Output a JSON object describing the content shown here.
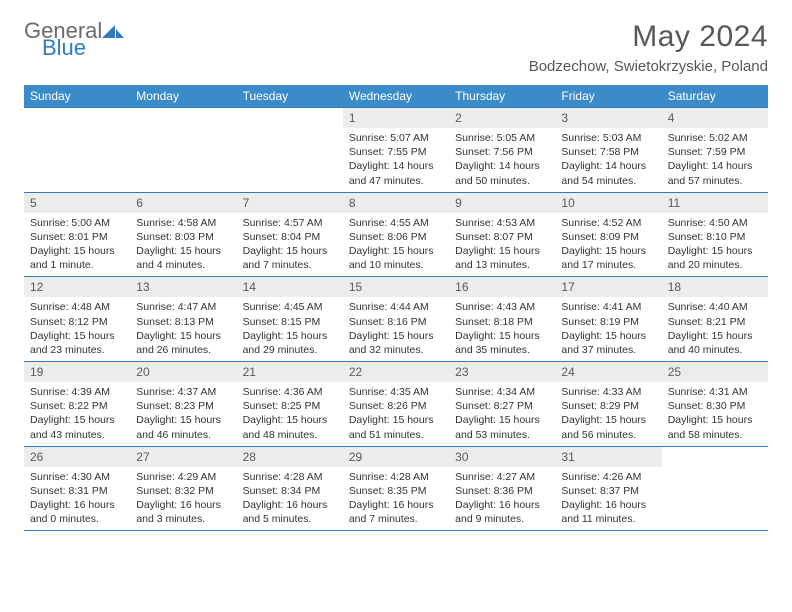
{
  "logo": {
    "text1": "General",
    "text2": "Blue"
  },
  "title": "May 2024",
  "location": "Bodzechow, Swietokrzyskie, Poland",
  "dow": [
    "Sunday",
    "Monday",
    "Tuesday",
    "Wednesday",
    "Thursday",
    "Friday",
    "Saturday"
  ],
  "colors": {
    "header_bg": "#3b8bc8",
    "header_text": "#ffffff",
    "rule": "#2f7bbf",
    "daynum_bg": "#ececec",
    "daynum_text": "#5a5a5a",
    "body_text": "#333333",
    "title_text": "#575757",
    "logo_gray": "#6a6a6a",
    "logo_blue": "#2f7bbf",
    "page_bg": "#ffffff"
  },
  "typography": {
    "title_fontsize": 30,
    "location_fontsize": 15,
    "dow_fontsize": 12,
    "daynum_fontsize": 12,
    "body_fontsize": 10.5,
    "logo_fontsize": 22
  },
  "layout": {
    "columns": 7,
    "rows": 5,
    "leading_blanks": 3,
    "trailing_blanks": 1
  },
  "days": [
    {
      "n": "1",
      "sunrise": "5:07 AM",
      "sunset": "7:55 PM",
      "daylight": "14 hours and 47 minutes."
    },
    {
      "n": "2",
      "sunrise": "5:05 AM",
      "sunset": "7:56 PM",
      "daylight": "14 hours and 50 minutes."
    },
    {
      "n": "3",
      "sunrise": "5:03 AM",
      "sunset": "7:58 PM",
      "daylight": "14 hours and 54 minutes."
    },
    {
      "n": "4",
      "sunrise": "5:02 AM",
      "sunset": "7:59 PM",
      "daylight": "14 hours and 57 minutes."
    },
    {
      "n": "5",
      "sunrise": "5:00 AM",
      "sunset": "8:01 PM",
      "daylight": "15 hours and 1 minute."
    },
    {
      "n": "6",
      "sunrise": "4:58 AM",
      "sunset": "8:03 PM",
      "daylight": "15 hours and 4 minutes."
    },
    {
      "n": "7",
      "sunrise": "4:57 AM",
      "sunset": "8:04 PM",
      "daylight": "15 hours and 7 minutes."
    },
    {
      "n": "8",
      "sunrise": "4:55 AM",
      "sunset": "8:06 PM",
      "daylight": "15 hours and 10 minutes."
    },
    {
      "n": "9",
      "sunrise": "4:53 AM",
      "sunset": "8:07 PM",
      "daylight": "15 hours and 13 minutes."
    },
    {
      "n": "10",
      "sunrise": "4:52 AM",
      "sunset": "8:09 PM",
      "daylight": "15 hours and 17 minutes."
    },
    {
      "n": "11",
      "sunrise": "4:50 AM",
      "sunset": "8:10 PM",
      "daylight": "15 hours and 20 minutes."
    },
    {
      "n": "12",
      "sunrise": "4:48 AM",
      "sunset": "8:12 PM",
      "daylight": "15 hours and 23 minutes."
    },
    {
      "n": "13",
      "sunrise": "4:47 AM",
      "sunset": "8:13 PM",
      "daylight": "15 hours and 26 minutes."
    },
    {
      "n": "14",
      "sunrise": "4:45 AM",
      "sunset": "8:15 PM",
      "daylight": "15 hours and 29 minutes."
    },
    {
      "n": "15",
      "sunrise": "4:44 AM",
      "sunset": "8:16 PM",
      "daylight": "15 hours and 32 minutes."
    },
    {
      "n": "16",
      "sunrise": "4:43 AM",
      "sunset": "8:18 PM",
      "daylight": "15 hours and 35 minutes."
    },
    {
      "n": "17",
      "sunrise": "4:41 AM",
      "sunset": "8:19 PM",
      "daylight": "15 hours and 37 minutes."
    },
    {
      "n": "18",
      "sunrise": "4:40 AM",
      "sunset": "8:21 PM",
      "daylight": "15 hours and 40 minutes."
    },
    {
      "n": "19",
      "sunrise": "4:39 AM",
      "sunset": "8:22 PM",
      "daylight": "15 hours and 43 minutes."
    },
    {
      "n": "20",
      "sunrise": "4:37 AM",
      "sunset": "8:23 PM",
      "daylight": "15 hours and 46 minutes."
    },
    {
      "n": "21",
      "sunrise": "4:36 AM",
      "sunset": "8:25 PM",
      "daylight": "15 hours and 48 minutes."
    },
    {
      "n": "22",
      "sunrise": "4:35 AM",
      "sunset": "8:26 PM",
      "daylight": "15 hours and 51 minutes."
    },
    {
      "n": "23",
      "sunrise": "4:34 AM",
      "sunset": "8:27 PM",
      "daylight": "15 hours and 53 minutes."
    },
    {
      "n": "24",
      "sunrise": "4:33 AM",
      "sunset": "8:29 PM",
      "daylight": "15 hours and 56 minutes."
    },
    {
      "n": "25",
      "sunrise": "4:31 AM",
      "sunset": "8:30 PM",
      "daylight": "15 hours and 58 minutes."
    },
    {
      "n": "26",
      "sunrise": "4:30 AM",
      "sunset": "8:31 PM",
      "daylight": "16 hours and 0 minutes."
    },
    {
      "n": "27",
      "sunrise": "4:29 AM",
      "sunset": "8:32 PM",
      "daylight": "16 hours and 3 minutes."
    },
    {
      "n": "28",
      "sunrise": "4:28 AM",
      "sunset": "8:34 PM",
      "daylight": "16 hours and 5 minutes."
    },
    {
      "n": "29",
      "sunrise": "4:28 AM",
      "sunset": "8:35 PM",
      "daylight": "16 hours and 7 minutes."
    },
    {
      "n": "30",
      "sunrise": "4:27 AM",
      "sunset": "8:36 PM",
      "daylight": "16 hours and 9 minutes."
    },
    {
      "n": "31",
      "sunrise": "4:26 AM",
      "sunset": "8:37 PM",
      "daylight": "16 hours and 11 minutes."
    }
  ],
  "labels": {
    "sunrise": "Sunrise:",
    "sunset": "Sunset:",
    "daylight": "Daylight:"
  }
}
